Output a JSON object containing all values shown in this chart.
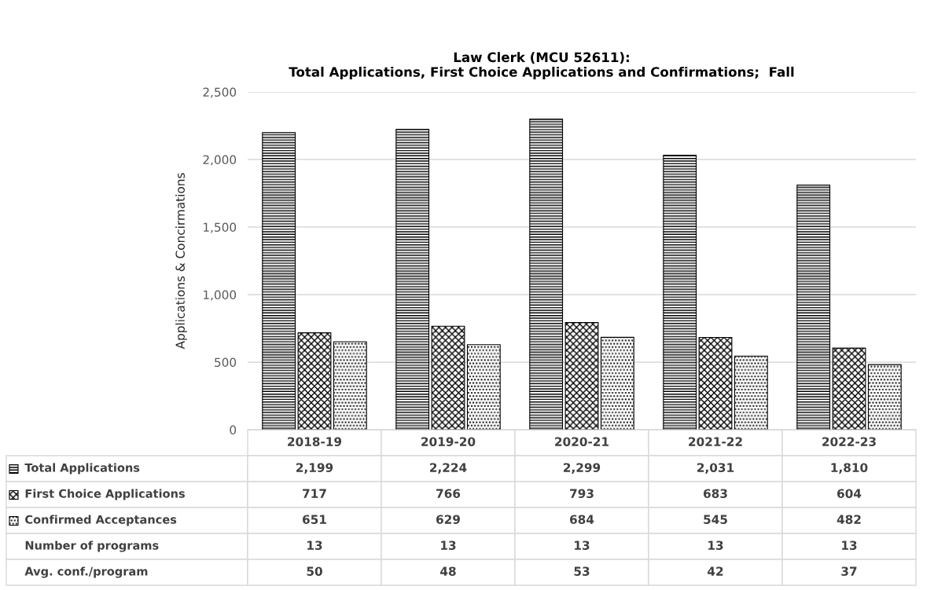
{
  "chart_data": {
    "type": "bar",
    "title": "Law Clerk (MCU 52611):\nTotal Applications, First Choice Applications and Confirmations;  Fall",
    "ylabel": "Applications & Concirmations",
    "categories": [
      "2018-19",
      "2019-20",
      "2020-21",
      "2021-22",
      "2022-23"
    ],
    "series": [
      {
        "name": "Total Applications",
        "color": "#000000",
        "values": [
          2199,
          2224,
          2299,
          2031,
          1810
        ],
        "value_labels": [
          "2,199",
          "2,224",
          "2,299",
          "2,031",
          "1,810"
        ]
      },
      {
        "name": "First Choice Applications",
        "color": "#000000",
        "values": [
          717,
          766,
          793,
          683,
          604
        ]
      },
      {
        "name": "Confirmed Acceptances",
        "color": "#000000",
        "values": [
          651,
          629,
          684,
          545,
          482
        ]
      }
    ],
    "ylim": [
      0,
      2500
    ],
    "yticks": [
      0,
      {
        "value": 500,
        "label": "500"
      },
      {
        "value": 1000,
        "label": "1,000"
      },
      {
        "value": 1500,
        "label": "1,500"
      },
      {
        "value": 2000,
        "label": "2,000"
      },
      {
        "value": 2500,
        "label": "2,500"
      }
    ],
    "grid": "y",
    "data_labels": true,
    "legend": "bottom left",
    "annotations": [
      "Number of programs",
      "13",
      "13",
      "13",
      "13",
      "13",
      "Avg. conf./program",
      "50",
      "48",
      "53",
      "42",
      "37"
    ]
  }
}
